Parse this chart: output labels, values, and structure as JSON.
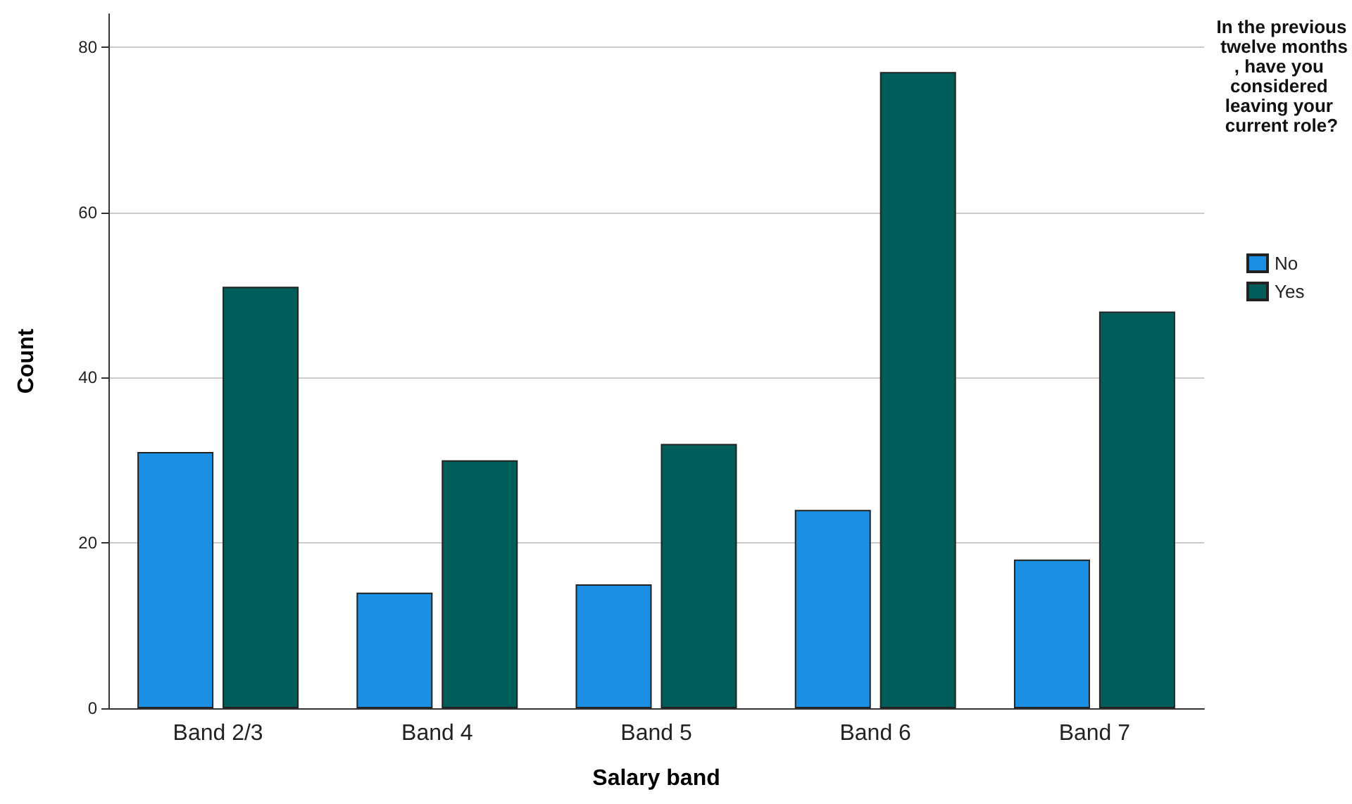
{
  "chart_data": {
    "type": "bar",
    "xlabel": "Salary band",
    "ylabel": "Count",
    "legend_title": "In the previous twelve months, have you considered leaving your current role?",
    "categories": [
      "Band 2/3",
      "Band 4",
      "Band 5",
      "Band 6",
      "Band 7"
    ],
    "series": [
      {
        "name": "No",
        "color": "#1a8fe3",
        "values": [
          31,
          14,
          15,
          24,
          18
        ]
      },
      {
        "name": "Yes",
        "color": "#005e5a",
        "values": [
          51,
          30,
          32,
          77,
          48
        ]
      }
    ],
    "ylim": [
      0,
      84
    ],
    "yticks": [
      0,
      20,
      40,
      60,
      80
    ],
    "grid": "y",
    "legend": "right"
  }
}
